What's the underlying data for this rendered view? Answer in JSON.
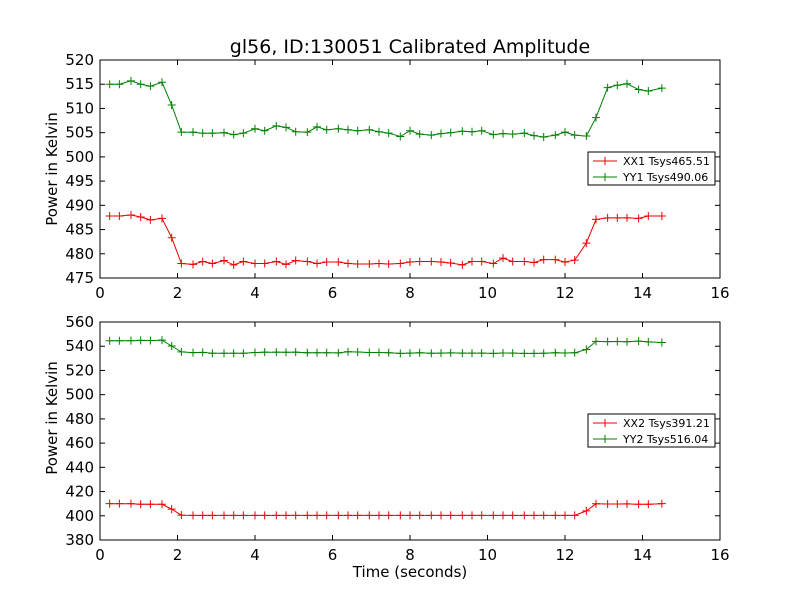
{
  "chart_data": [
    {
      "type": "line",
      "title": "gl56, ID:130051 Calibrated Amplitude",
      "xlabel": "",
      "ylabel": "Power in Kelvin",
      "xlim": [
        0,
        16
      ],
      "ylim": [
        475,
        520
      ],
      "xticks": [
        "0",
        "2",
        "4",
        "6",
        "8",
        "10",
        "12",
        "14",
        "16"
      ],
      "yticks": [
        "475",
        "480",
        "485",
        "490",
        "495",
        "500",
        "505",
        "510",
        "515",
        "520"
      ],
      "legend_position": "center-right",
      "x": [
        0.25,
        0.5,
        0.8,
        1.05,
        1.3,
        1.6,
        1.85,
        2.1,
        2.4,
        2.65,
        2.9,
        3.2,
        3.45,
        3.7,
        4.0,
        4.25,
        4.55,
        4.8,
        5.05,
        5.35,
        5.6,
        5.85,
        6.15,
        6.4,
        6.65,
        6.95,
        7.2,
        7.45,
        7.75,
        8.0,
        8.25,
        8.55,
        8.8,
        9.05,
        9.35,
        9.6,
        9.85,
        10.15,
        10.4,
        10.65,
        10.95,
        11.2,
        11.45,
        11.75,
        12.0,
        12.25,
        12.55,
        12.8,
        13.1,
        13.35,
        13.6,
        13.9,
        14.15,
        14.5
      ],
      "series": [
        {
          "name": "XX1 Tsys465.51",
          "color": "#ee0000",
          "values": [
            487.8,
            487.8,
            488.0,
            487.6,
            487.0,
            487.3,
            483.3,
            478.0,
            477.8,
            478.4,
            478.0,
            478.6,
            477.7,
            478.4,
            478.0,
            478.0,
            478.4,
            477.8,
            478.6,
            478.4,
            478.0,
            478.3,
            478.3,
            478.0,
            477.9,
            477.9,
            478.0,
            477.9,
            478.0,
            478.3,
            478.4,
            478.4,
            478.3,
            478.1,
            477.7,
            478.4,
            478.4,
            478.0,
            479.1,
            478.4,
            478.4,
            478.2,
            478.8,
            478.8,
            478.3,
            478.7,
            482.2,
            487.1,
            487.4,
            487.4,
            487.4,
            487.3,
            487.8,
            487.8
          ]
        },
        {
          "name": "YY1 Tsys490.06",
          "color": "#008000",
          "values": [
            515.0,
            515.0,
            515.7,
            515.0,
            514.6,
            515.4,
            510.7,
            505.1,
            505.1,
            504.9,
            504.9,
            505.0,
            504.6,
            504.9,
            505.8,
            505.4,
            506.4,
            506.1,
            505.2,
            505.1,
            506.2,
            505.6,
            505.8,
            505.6,
            505.4,
            505.6,
            505.2,
            504.9,
            504.2,
            505.4,
            504.7,
            504.5,
            504.8,
            505.0,
            505.3,
            505.2,
            505.4,
            504.6,
            504.8,
            504.7,
            504.9,
            504.4,
            504.1,
            504.5,
            505.1,
            504.5,
            504.3,
            508.1,
            514.3,
            514.8,
            515.1,
            513.9,
            513.6,
            514.2
          ]
        }
      ]
    },
    {
      "type": "line",
      "title": "",
      "xlabel": "Time (seconds)",
      "ylabel": "Power in Kelvin",
      "xlim": [
        0,
        16
      ],
      "ylim": [
        380,
        560
      ],
      "xticks": [
        "0",
        "2",
        "4",
        "6",
        "8",
        "10",
        "12",
        "14",
        "16"
      ],
      "yticks": [
        "380",
        "400",
        "420",
        "440",
        "460",
        "480",
        "500",
        "520",
        "540",
        "560"
      ],
      "legend_position": "center-right",
      "x": [
        0.25,
        0.5,
        0.8,
        1.05,
        1.3,
        1.6,
        1.85,
        2.1,
        2.4,
        2.65,
        2.9,
        3.2,
        3.45,
        3.7,
        4.0,
        4.25,
        4.55,
        4.8,
        5.05,
        5.35,
        5.6,
        5.85,
        6.15,
        6.4,
        6.65,
        6.95,
        7.2,
        7.45,
        7.75,
        8.0,
        8.25,
        8.55,
        8.8,
        9.05,
        9.35,
        9.6,
        9.85,
        10.15,
        10.4,
        10.65,
        10.95,
        11.2,
        11.45,
        11.75,
        12.0,
        12.25,
        12.55,
        12.8,
        13.1,
        13.35,
        13.6,
        13.9,
        14.15,
        14.5
      ],
      "series": [
        {
          "name": "XX2 Tsys391.21",
          "color": "#ee0000",
          "values": [
            410,
            410,
            410,
            409.5,
            409.5,
            409.5,
            405.5,
            400.5,
            400.3,
            400.3,
            400.3,
            400.3,
            400.3,
            400.3,
            400.3,
            400.3,
            400.3,
            400.3,
            400.3,
            400.3,
            400.3,
            400.3,
            400.3,
            400.3,
            400.3,
            400.3,
            400.3,
            400.3,
            400.3,
            400.3,
            400.3,
            400.3,
            400.3,
            400.3,
            400.3,
            400.3,
            400.3,
            400.3,
            400.3,
            400.3,
            400.3,
            400.3,
            400.3,
            400.3,
            400.3,
            400.3,
            404.0,
            409.9,
            409.7,
            409.7,
            409.8,
            409.5,
            409.5,
            410
          ]
        },
        {
          "name": "YY2 Tsys516.04",
          "color": "#008000",
          "values": [
            544.5,
            544.5,
            544.6,
            544.8,
            544.7,
            545.0,
            540.2,
            535.3,
            534.7,
            534.9,
            534.2,
            534.2,
            534.2,
            534.2,
            534.8,
            535.1,
            535.1,
            535.0,
            535.1,
            534.6,
            534.6,
            534.6,
            534.5,
            535.4,
            535.2,
            534.8,
            534.8,
            534.6,
            534.1,
            534.3,
            534.6,
            534.2,
            534.3,
            534.5,
            534.3,
            534.3,
            534.3,
            534.1,
            534.4,
            534.3,
            534.1,
            534.1,
            534.2,
            534.6,
            534.4,
            534.6,
            537.3,
            544.0,
            543.8,
            543.9,
            543.7,
            544.2,
            543.6,
            543.1
          ]
        }
      ]
    }
  ]
}
